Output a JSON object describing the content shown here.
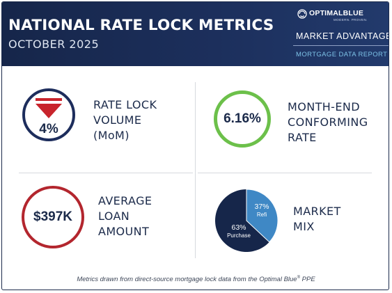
{
  "header": {
    "title": "NATIONAL RATE LOCK METRICS",
    "subtitle": "OCTOBER 2025",
    "brand": {
      "name": "OPTIMALBLUE",
      "tagline": "MODERN. PROVEN.",
      "icon": "optimal-blue-globe-icon"
    },
    "market_advantage": "MARKET ADVANTAGE",
    "report_name": "MORTGAGE DATA REPORT"
  },
  "metrics": {
    "rate_lock_volume": {
      "value": "4%",
      "direction": "down",
      "label_lines": [
        "RATE LOCK",
        "VOLUME",
        "(MoM)"
      ],
      "ring_color": "#1d2d5c",
      "arrow_color": "#c8242c",
      "icon": "down-arrow-icon"
    },
    "conforming_rate": {
      "value": "6.16%",
      "label_lines": [
        "MONTH-END",
        "CONFORMING",
        "RATE"
      ],
      "ring_color": "#6cc04a"
    },
    "average_loan": {
      "value": "$397K",
      "label_lines": [
        "AVERAGE",
        "LOAN",
        "AMOUNT"
      ],
      "ring_color": "#b3262e"
    },
    "market_mix": {
      "label_lines": [
        "MARKET",
        "MIX"
      ],
      "slices": [
        {
          "pct_label": "63%",
          "name": "Purchase",
          "value": 63,
          "color": "#16264a"
        },
        {
          "pct_label": "37%",
          "name": "Refi",
          "value": 37,
          "color": "#3f88c5"
        }
      ]
    }
  },
  "footer": {
    "text_before": "Metrics drawn from direct-source mortgage lock data from the Optimal Blue",
    "registered": "®",
    "text_after": " PPE"
  }
}
